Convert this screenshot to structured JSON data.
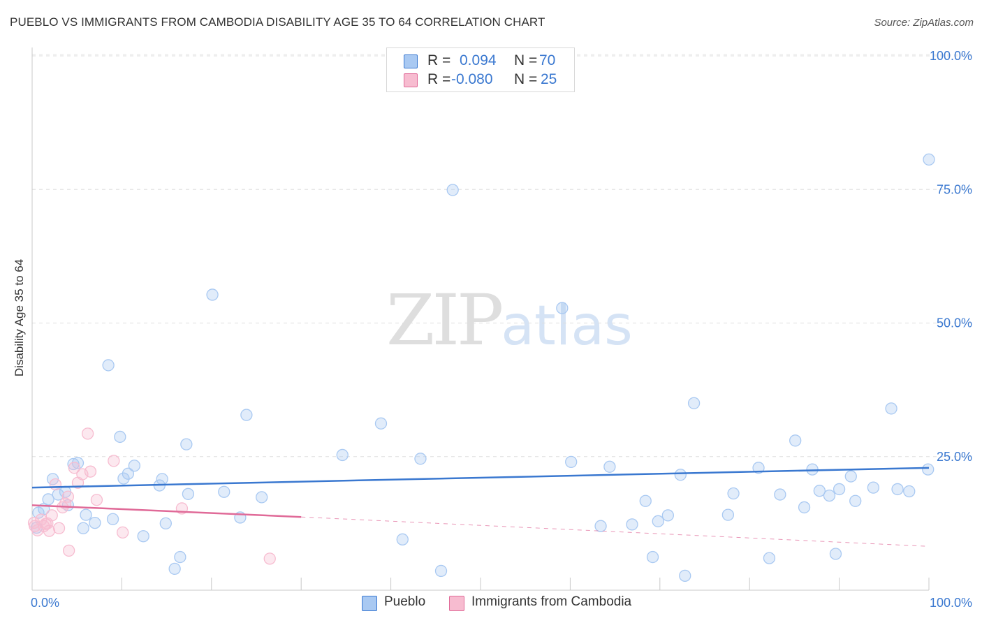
{
  "header": {
    "title": "PUEBLO VS IMMIGRANTS FROM CAMBODIA DISABILITY AGE 35 TO 64 CORRELATION CHART",
    "source": "Source: ZipAtlas.com"
  },
  "watermark": {
    "zip": "ZIP",
    "atlas": "atlas"
  },
  "legend": {
    "rows": [
      {
        "r_label": "R =",
        "r_value": "0.094",
        "n_label": "N =",
        "n_value": "70",
        "color": "#a9c9f2"
      },
      {
        "r_label": "R =",
        "r_value": "-0.080",
        "n_label": "N =",
        "n_value": "25",
        "color": "#f7bcd0"
      }
    ]
  },
  "bottom_legend": [
    {
      "label": "Pueblo",
      "color": "#a9c9f2"
    },
    {
      "label": "Immigrants from Cambodia",
      "color": "#f7bcd0"
    }
  ],
  "chart_data": {
    "type": "scatter",
    "title": "PUEBLO VS IMMIGRANTS FROM CAMBODIA DISABILITY AGE 35 TO 64 CORRELATION CHART",
    "xlabel": "",
    "ylabel": "Disability Age 35 to 64",
    "xlim": [
      0,
      100
    ],
    "ylim": [
      0,
      100
    ],
    "x_tick_labels": [
      "0.0%",
      "100.0%"
    ],
    "y_tick_labels": [
      "100.0%",
      "75.0%",
      "50.0%",
      "25.0%"
    ],
    "y_ticks": [
      100,
      75,
      50,
      25
    ],
    "grid": true,
    "series": [
      {
        "name": "Pueblo",
        "color": "#3a78d0",
        "fill": "#a9c9f2",
        "trend": {
          "x0": 0,
          "y0": 19.2,
          "x1": 100,
          "y1": 22.9,
          "dashed_after": null
        },
        "points": [
          [
            0.5,
            11.7
          ],
          [
            0.7,
            14.5
          ],
          [
            1.3,
            15.2
          ],
          [
            1.8,
            17.0
          ],
          [
            2.3,
            20.8
          ],
          [
            2.9,
            17.9
          ],
          [
            3.7,
            18.4
          ],
          [
            4.6,
            23.6
          ],
          [
            5.1,
            23.8
          ],
          [
            6.0,
            14.1
          ],
          [
            5.7,
            11.6
          ],
          [
            7.0,
            12.6
          ],
          [
            8.5,
            42.1
          ],
          [
            9.0,
            13.3
          ],
          [
            9.8,
            28.7
          ],
          [
            10.2,
            20.9
          ],
          [
            10.7,
            21.8
          ],
          [
            11.4,
            23.3
          ],
          [
            12.4,
            10.1
          ],
          [
            14.2,
            19.6
          ],
          [
            14.5,
            20.8
          ],
          [
            14.9,
            12.5
          ],
          [
            15.9,
            4.0
          ],
          [
            16.5,
            6.2
          ],
          [
            17.2,
            27.3
          ],
          [
            17.4,
            18.0
          ],
          [
            20.1,
            55.3
          ],
          [
            21.4,
            18.4
          ],
          [
            23.2,
            13.6
          ],
          [
            23.9,
            32.8
          ],
          [
            25.6,
            17.4
          ],
          [
            34.6,
            25.3
          ],
          [
            38.9,
            31.2
          ],
          [
            41.3,
            9.5
          ],
          [
            43.3,
            24.6
          ],
          [
            45.6,
            3.6
          ],
          [
            46.9,
            74.9
          ],
          [
            59.1,
            52.8
          ],
          [
            60.1,
            24.0
          ],
          [
            63.4,
            12.0
          ],
          [
            64.4,
            23.1
          ],
          [
            66.9,
            12.3
          ],
          [
            68.4,
            16.7
          ],
          [
            69.2,
            6.2
          ],
          [
            69.8,
            12.9
          ],
          [
            70.9,
            14.0
          ],
          [
            72.3,
            21.6
          ],
          [
            72.8,
            2.7
          ],
          [
            73.8,
            35.0
          ],
          [
            77.6,
            14.1
          ],
          [
            78.2,
            18.1
          ],
          [
            81.0,
            22.9
          ],
          [
            82.2,
            6.0
          ],
          [
            83.4,
            17.9
          ],
          [
            85.1,
            28.0
          ],
          [
            86.1,
            15.5
          ],
          [
            87.0,
            22.6
          ],
          [
            87.8,
            18.6
          ],
          [
            88.9,
            17.7
          ],
          [
            89.6,
            6.8
          ],
          [
            90.0,
            18.9
          ],
          [
            91.3,
            21.3
          ],
          [
            91.8,
            16.7
          ],
          [
            93.8,
            19.2
          ],
          [
            95.8,
            34.0
          ],
          [
            96.5,
            18.9
          ],
          [
            97.8,
            18.5
          ],
          [
            100.0,
            80.6
          ],
          [
            99.9,
            22.6
          ],
          [
            4.0,
            15.9
          ]
        ]
      },
      {
        "name": "Immigrants from Cambodia",
        "color": "#e06a98",
        "fill": "#f7bcd0",
        "trend": {
          "x0": 0,
          "y0": 15.9,
          "x1": 30.0,
          "y1": 13.7,
          "dashed_to_x": 100,
          "dashed_to_y": 8.2
        },
        "points": [
          [
            0.3,
            12.0
          ],
          [
            0.6,
            11.2
          ],
          [
            1.0,
            13.2
          ],
          [
            1.3,
            12.0
          ],
          [
            1.7,
            12.5
          ],
          [
            1.9,
            11.1
          ],
          [
            2.2,
            14.0
          ],
          [
            2.6,
            19.8
          ],
          [
            3.0,
            11.6
          ],
          [
            3.4,
            15.5
          ],
          [
            3.7,
            16.2
          ],
          [
            4.0,
            17.5
          ],
          [
            4.1,
            7.4
          ],
          [
            4.7,
            22.9
          ],
          [
            5.1,
            20.1
          ],
          [
            5.6,
            21.7
          ],
          [
            6.2,
            29.3
          ],
          [
            6.5,
            22.2
          ],
          [
            7.2,
            16.9
          ],
          [
            9.1,
            24.2
          ],
          [
            10.1,
            10.8
          ],
          [
            16.7,
            15.3
          ],
          [
            26.5,
            5.9
          ],
          [
            0.2,
            12.6
          ],
          [
            1.5,
            12.4
          ]
        ]
      }
    ]
  }
}
